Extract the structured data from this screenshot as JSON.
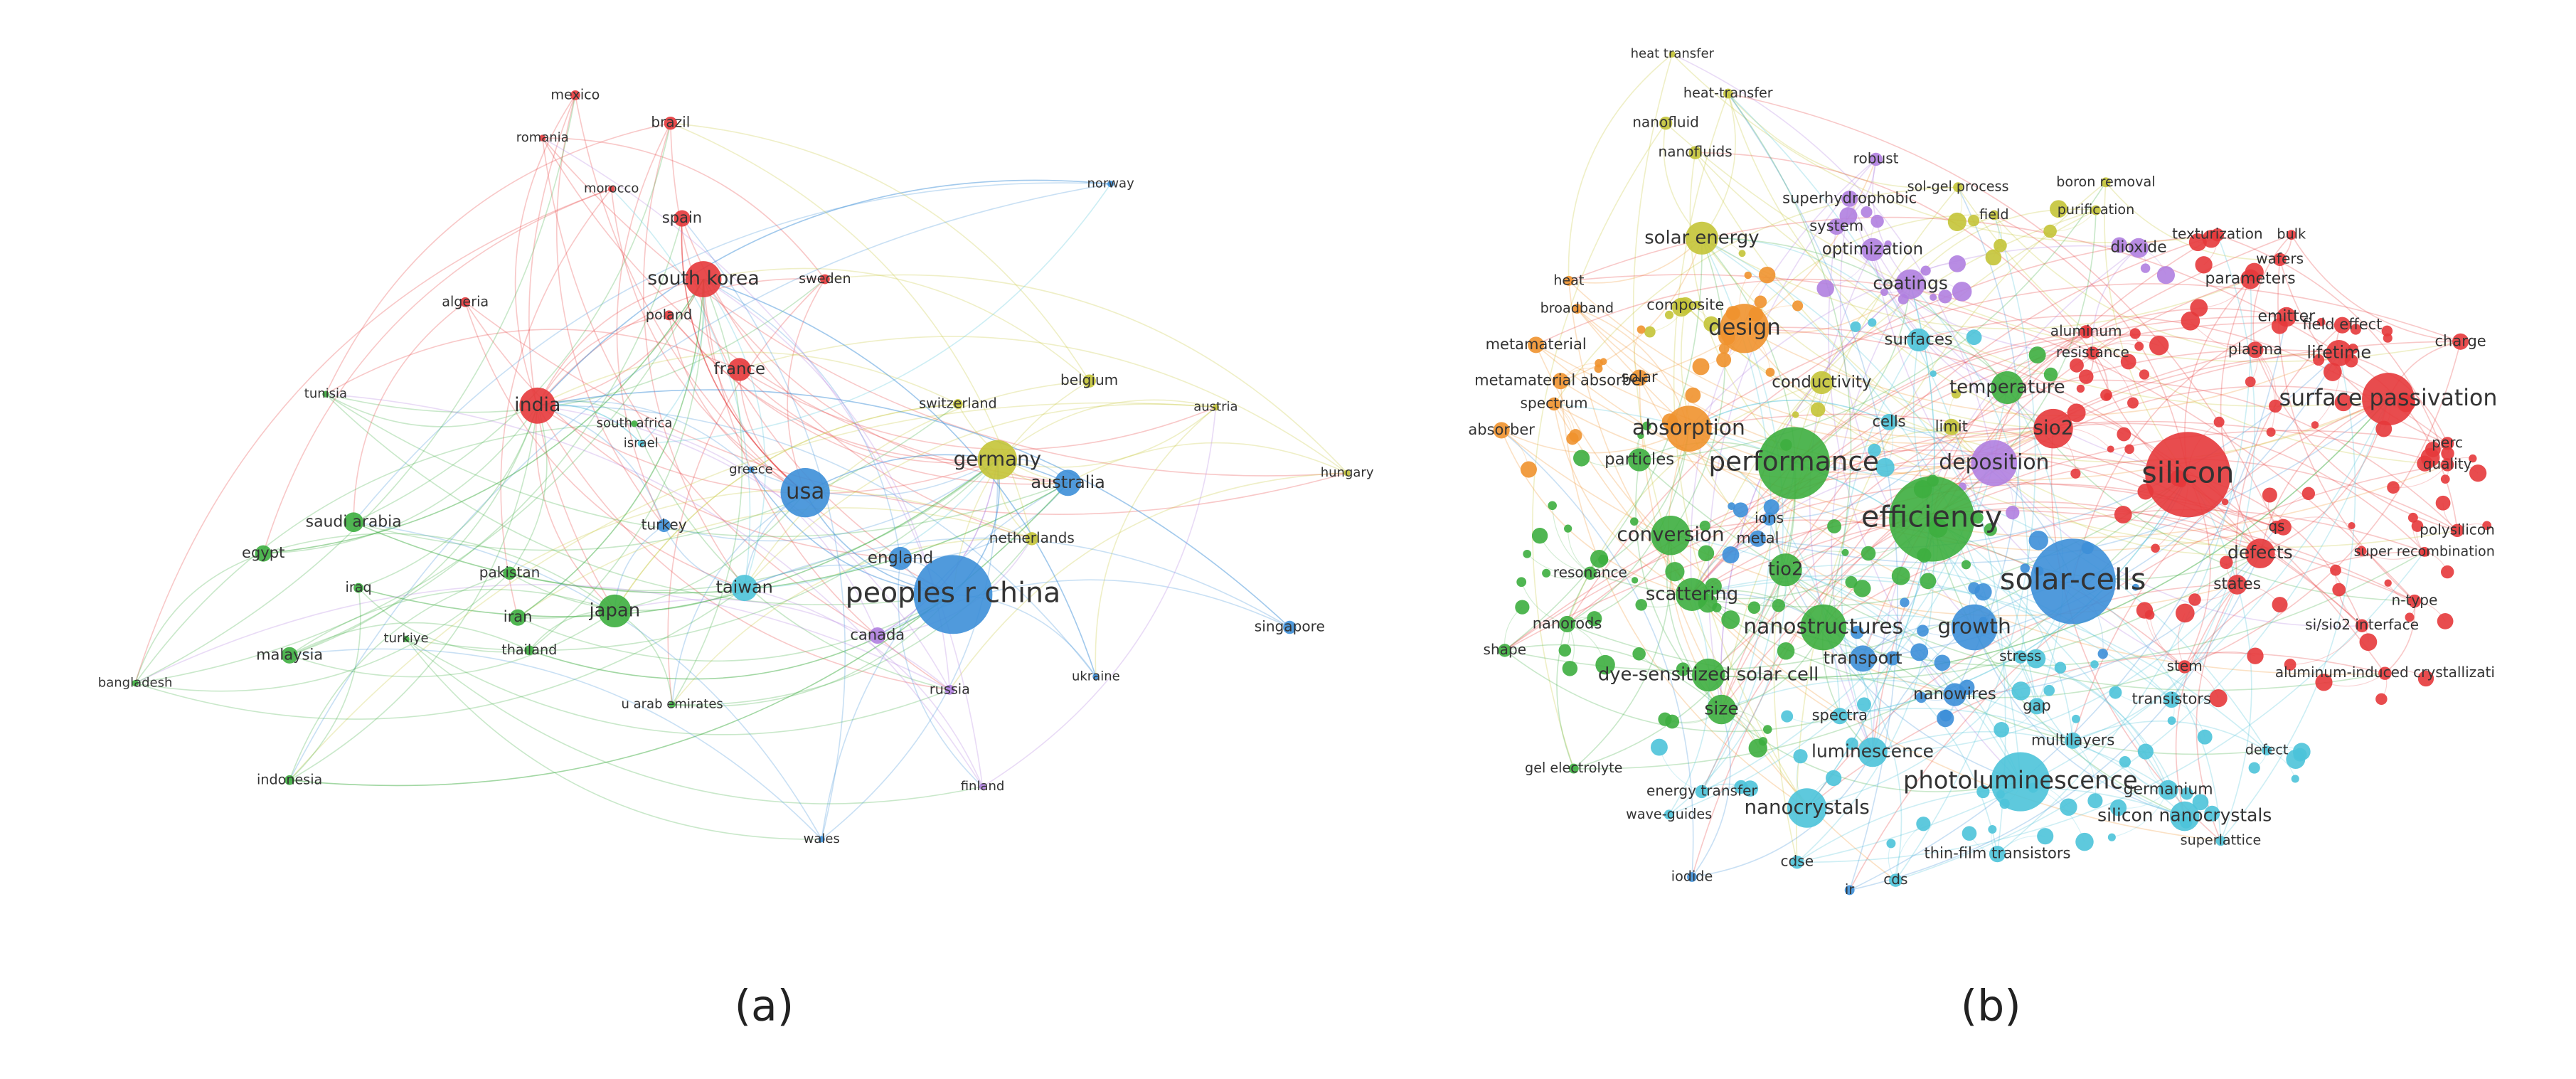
{
  "panels": [
    {
      "caption": "(a)",
      "nodes": [
        "mexico",
        "brazil",
        "romania",
        "morocco",
        "spain",
        "south korea",
        "sweden",
        "poland",
        "algeria",
        "france",
        "india",
        "tunisia",
        "south africa",
        "israel",
        "greece",
        "usa",
        "switzerland",
        "belgium",
        "austria",
        "germany",
        "australia",
        "hungary",
        "norway",
        "saudi arabia",
        "turkey",
        "netherlands",
        "egypt",
        "pakistan",
        "iraq",
        "england",
        "taiwan",
        "iran",
        "japan",
        "peoples r china",
        "turkiye",
        "thailand",
        "malaysia",
        "canada",
        "singapore",
        "ukraine",
        "russia",
        "bangladesh",
        "u arab emirates",
        "indonesia",
        "finland",
        "wales"
      ]
    },
    {
      "caption": "(b)",
      "nodes": [
        "heat transfer",
        "heat-transfer",
        "nanofluid",
        "nanofluids",
        "robust",
        "sol-gel process",
        "boron removal",
        "superhydrophobic",
        "field",
        "purification",
        "system",
        "solar energy",
        "optimization",
        "dioxide",
        "texturization",
        "bulk",
        "wafers",
        "heat",
        "coatings",
        "parameters",
        "broadband",
        "composite",
        "emitter",
        "field effect",
        "design",
        "aluminum",
        "charge",
        "metamaterial",
        "surfaces",
        "resistance",
        "plasma",
        "lifetime",
        "metamaterial absorber",
        "solar",
        "conductivity",
        "temperature",
        "spectrum",
        "surface passivation",
        "cells",
        "limit",
        "sio2",
        "absorber",
        "absorption",
        "perc",
        "particles",
        "performance",
        "deposition",
        "silicon",
        "quality",
        "ions",
        "efficiency",
        "polysilicon",
        "conversion",
        "metal",
        "qs",
        "tio2",
        "defects",
        "super recombination",
        "resonance",
        "solar-cells",
        "states",
        "n-type",
        "scattering",
        "nanorods",
        "nanostructures",
        "growth",
        "si/sio2 interface",
        "shape",
        "transport",
        "stress",
        "stem",
        "dye-sensitized solar cell",
        "aluminum-induced crystallizati",
        "nanowires",
        "gap",
        "transistors",
        "size",
        "spectra",
        "multilayers",
        "defect",
        "luminescence",
        "gel electrolyte",
        "photoluminescence",
        "germanium",
        "energy transfer",
        "nanocrystals",
        "silicon nanocrystals",
        "wave-guides",
        "superlattice",
        "thin-film transistors",
        "cdse",
        "iodide",
        "cds",
        "ir"
      ]
    }
  ]
}
